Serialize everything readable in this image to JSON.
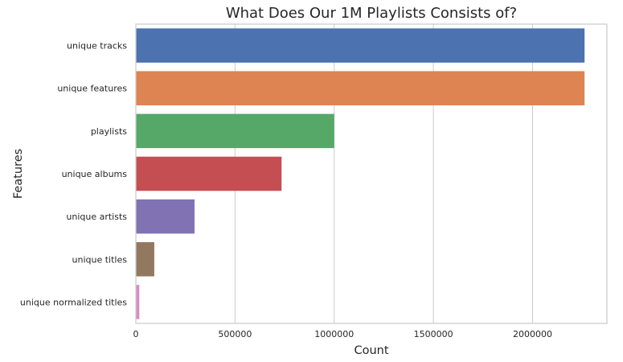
{
  "chart_data": {
    "type": "bar",
    "orientation": "horizontal",
    "title": "What Does Our 1M Playlists Consists of?",
    "xlabel": "Count",
    "ylabel": "Features",
    "categories": [
      "unique tracks",
      "unique features",
      "playlists",
      "unique albums",
      "unique artists",
      "unique titles",
      "unique normalized titles"
    ],
    "values": [
      2262292,
      2262292,
      1000000,
      734684,
      295860,
      92944,
      17381
    ],
    "colors": [
      "#4c72b0",
      "#dd8452",
      "#55a868",
      "#c44e52",
      "#8172b3",
      "#937860",
      "#da8bc3"
    ],
    "xlim": [
      0,
      2375000
    ],
    "xticks": [
      0,
      500000,
      1000000,
      1500000,
      2000000
    ],
    "xtick_labels": [
      "0",
      "500000",
      "1000000",
      "1500000",
      "2000000"
    ],
    "grid": "x",
    "legend": "none"
  }
}
